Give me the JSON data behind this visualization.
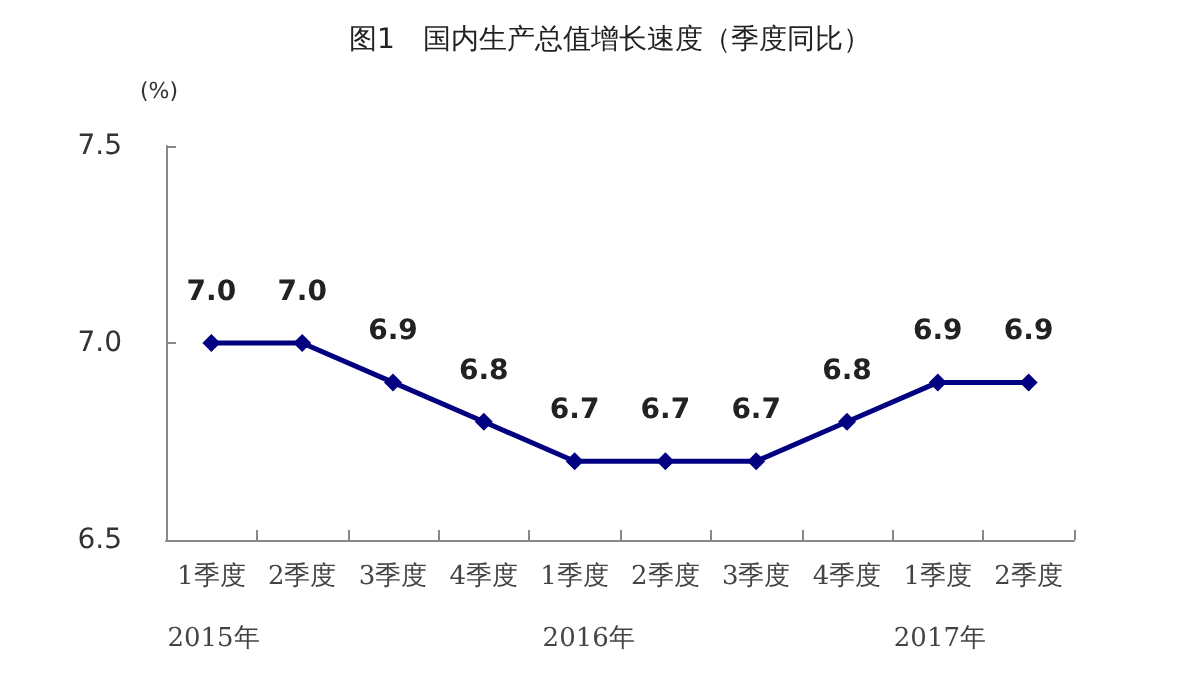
{
  "chart_data": {
    "type": "line",
    "title": "图1　国内生产总值增长速度（季度同比）",
    "ylabel": "(%)",
    "categories": [
      "1季度",
      "2季度",
      "3季度",
      "4季度",
      "1季度",
      "2季度",
      "3季度",
      "4季度",
      "1季度",
      "2季度"
    ],
    "series": [
      {
        "color": "#000080",
        "values": [
          7.0,
          7.0,
          6.9,
          6.8,
          6.7,
          6.7,
          6.7,
          6.8,
          6.9,
          6.9
        ],
        "value_labels": [
          "7.0",
          "7.0",
          "6.9",
          "6.8",
          "6.7",
          "6.7",
          "6.7",
          "6.8",
          "6.9",
          "6.9"
        ]
      }
    ],
    "ylim": [
      6.5,
      7.5
    ],
    "yticks": [
      {
        "value": 6.5,
        "label": "6.5"
      },
      {
        "value": 7,
        "label": "7.0"
      },
      {
        "value": 7.5,
        "label": "7.5"
      }
    ],
    "annotations": [
      "2015年",
      "2016年",
      "2017年"
    ],
    "marker": "diamond",
    "line_style": "solid",
    "grid": false
  }
}
